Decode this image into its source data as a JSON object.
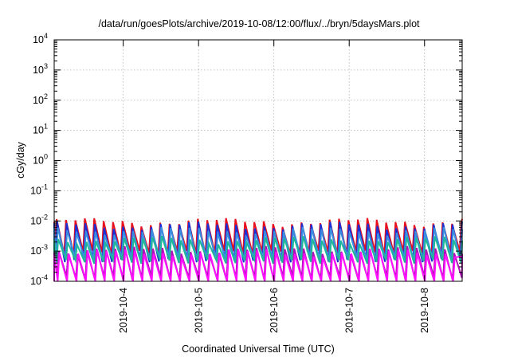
{
  "chart_data": {
    "type": "line",
    "title": "/data/run/goesPlots/archive/2019-10-08/12:00/flux/../bryn/5daysMars.plot",
    "xlabel": "Coordinated Universal Time (UTC)",
    "ylabel": "cGy/day",
    "x_range": [
      "2019-10-03T02:00",
      "2019-10-08T12:00"
    ],
    "y_scale": "log",
    "ylim": [
      0.0001,
      10000
    ],
    "y_ticks": [
      {
        "base": "10",
        "exp": "-4"
      },
      {
        "base": "10",
        "exp": "-3"
      },
      {
        "base": "10",
        "exp": "-2"
      },
      {
        "base": "10",
        "exp": "-1"
      },
      {
        "base": "10",
        "exp": "0"
      },
      {
        "base": "10",
        "exp": "1"
      },
      {
        "base": "10",
        "exp": "2"
      },
      {
        "base": "10",
        "exp": "3"
      },
      {
        "base": "10",
        "exp": "4"
      }
    ],
    "x_ticks": [
      {
        "date": "2019-10-04T00:00",
        "label": "2019-10-4"
      },
      {
        "date": "2019-10-05T00:00",
        "label": "2019-10-5"
      },
      {
        "date": "2019-10-06T00:00",
        "label": "2019-10-6"
      },
      {
        "date": "2019-10-07T00:00",
        "label": "2019-10-7"
      },
      {
        "date": "2019-10-08T00:00",
        "label": "2019-10-8"
      }
    ],
    "grid": true,
    "legend": "none",
    "sawtooth_period_hours": 3,
    "series": [
      {
        "color": "#e8101c",
        "peak": 0.0095,
        "trough": 0.0009
      },
      {
        "color": "#1a2fd6",
        "peak": 0.0072,
        "trough": 0.0005
      },
      {
        "color": "#3a8ee0",
        "peak": 0.0048,
        "trough": 0.00055
      },
      {
        "color": "#1fb89a",
        "peak": 0.0024,
        "trough": 0.00045
      },
      {
        "color": "#b010b8",
        "peak": 0.0011,
        "trough": 0.00013
      },
      {
        "color": "#ff10ff",
        "peak": 0.0009,
        "trough": 9e-05
      }
    ]
  }
}
